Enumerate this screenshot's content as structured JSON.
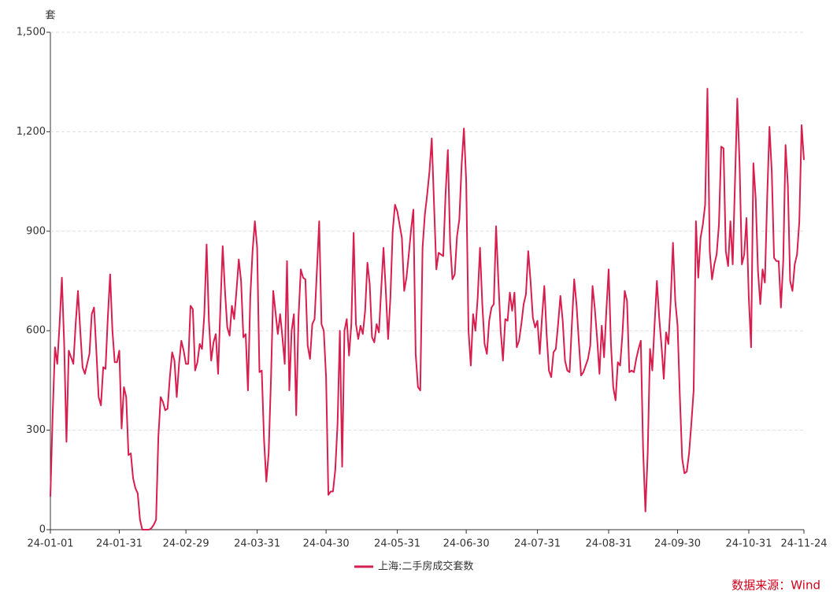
{
  "chart_data": {
    "type": "line",
    "y_unit": "套",
    "source": "数据来源：Wind",
    "x": [
      "24-01-01",
      "24-01-02",
      "24-01-03",
      "24-01-04",
      "24-01-05",
      "24-01-06",
      "24-01-07",
      "24-01-08",
      "24-01-09",
      "24-01-10",
      "24-01-11",
      "24-01-12",
      "24-01-13",
      "24-01-14",
      "24-01-15",
      "24-01-16",
      "24-01-17",
      "24-01-18",
      "24-01-19",
      "24-01-20",
      "24-01-21",
      "24-01-22",
      "24-01-23",
      "24-01-24",
      "24-01-25",
      "24-01-26",
      "24-01-27",
      "24-01-28",
      "24-01-29",
      "24-01-30",
      "24-01-31",
      "24-02-01",
      "24-02-02",
      "24-02-03",
      "24-02-04",
      "24-02-05",
      "24-02-06",
      "24-02-07",
      "24-02-08",
      "24-02-09",
      "24-02-10",
      "24-02-11",
      "24-02-12",
      "24-02-13",
      "24-02-14",
      "24-02-15",
      "24-02-16",
      "24-02-17",
      "24-02-18",
      "24-02-19",
      "24-02-20",
      "24-02-21",
      "24-02-22",
      "24-02-23",
      "24-02-24",
      "24-02-25",
      "24-02-26",
      "24-02-27",
      "24-02-28",
      "24-02-29",
      "24-03-01",
      "24-03-02",
      "24-03-03",
      "24-03-04",
      "24-03-05",
      "24-03-06",
      "24-03-07",
      "24-03-08",
      "24-03-09",
      "24-03-10",
      "24-03-11",
      "24-03-12",
      "24-03-13",
      "24-03-14",
      "24-03-15",
      "24-03-16",
      "24-03-17",
      "24-03-18",
      "24-03-19",
      "24-03-20",
      "24-03-21",
      "24-03-22",
      "24-03-23",
      "24-03-24",
      "24-03-25",
      "24-03-26",
      "24-03-27",
      "24-03-28",
      "24-03-29",
      "24-03-30",
      "24-03-31",
      "24-04-01",
      "24-04-02",
      "24-04-03",
      "24-04-04",
      "24-04-05",
      "24-04-06",
      "24-04-07",
      "24-04-08",
      "24-04-09",
      "24-04-10",
      "24-04-11",
      "24-04-12",
      "24-04-13",
      "24-04-14",
      "24-04-15",
      "24-04-16",
      "24-04-17",
      "24-04-18",
      "24-04-19",
      "24-04-20",
      "24-04-21",
      "24-04-22",
      "24-04-23",
      "24-04-24",
      "24-04-25",
      "24-04-26",
      "24-04-27",
      "24-04-28",
      "24-04-29",
      "24-04-30",
      "24-05-01",
      "24-05-02",
      "24-05-03",
      "24-05-04",
      "24-05-05",
      "24-05-06",
      "24-05-07",
      "24-05-08",
      "24-05-09",
      "24-05-10",
      "24-05-11",
      "24-05-12",
      "24-05-13",
      "24-05-14",
      "24-05-15",
      "24-05-16",
      "24-05-17",
      "24-05-18",
      "24-05-19",
      "24-05-20",
      "24-05-21",
      "24-05-22",
      "24-05-23",
      "24-05-24",
      "24-05-25",
      "24-05-26",
      "24-05-27",
      "24-05-28",
      "24-05-29",
      "24-05-30",
      "24-05-31",
      "24-06-01",
      "24-06-02",
      "24-06-03",
      "24-06-04",
      "24-06-05",
      "24-06-06",
      "24-06-07",
      "24-06-08",
      "24-06-09",
      "24-06-10",
      "24-06-11",
      "24-06-12",
      "24-06-13",
      "24-06-14",
      "24-06-15",
      "24-06-16",
      "24-06-17",
      "24-06-18",
      "24-06-19",
      "24-06-20",
      "24-06-21",
      "24-06-22",
      "24-06-23",
      "24-06-24",
      "24-06-25",
      "24-06-26",
      "24-06-27",
      "24-06-28",
      "24-06-29",
      "24-06-30",
      "24-07-01",
      "24-07-02",
      "24-07-03",
      "24-07-04",
      "24-07-05",
      "24-07-06",
      "24-07-07",
      "24-07-08",
      "24-07-09",
      "24-07-10",
      "24-07-11",
      "24-07-12",
      "24-07-13",
      "24-07-14",
      "24-07-15",
      "24-07-16",
      "24-07-17",
      "24-07-18",
      "24-07-19",
      "24-07-20",
      "24-07-21",
      "24-07-22",
      "24-07-23",
      "24-07-24",
      "24-07-25",
      "24-07-26",
      "24-07-27",
      "24-07-28",
      "24-07-29",
      "24-07-30",
      "24-07-31",
      "24-08-01",
      "24-08-02",
      "24-08-03",
      "24-08-04",
      "24-08-05",
      "24-08-06",
      "24-08-07",
      "24-08-08",
      "24-08-09",
      "24-08-10",
      "24-08-11",
      "24-08-12",
      "24-08-13",
      "24-08-14",
      "24-08-15",
      "24-08-16",
      "24-08-17",
      "24-08-18",
      "24-08-19",
      "24-08-20",
      "24-08-21",
      "24-08-22",
      "24-08-23",
      "24-08-24",
      "24-08-25",
      "24-08-26",
      "24-08-27",
      "24-08-28",
      "24-08-29",
      "24-08-30",
      "24-08-31",
      "24-09-01",
      "24-09-02",
      "24-09-03",
      "24-09-04",
      "24-09-05",
      "24-09-06",
      "24-09-07",
      "24-09-08",
      "24-09-09",
      "24-09-10",
      "24-09-11",
      "24-09-12",
      "24-09-13",
      "24-09-14",
      "24-09-15",
      "24-09-16",
      "24-09-17",
      "24-09-18",
      "24-09-19",
      "24-09-20",
      "24-09-21",
      "24-09-22",
      "24-09-23",
      "24-09-24",
      "24-09-25",
      "24-09-26",
      "24-09-27",
      "24-09-28",
      "24-09-29",
      "24-09-30",
      "24-10-01",
      "24-10-02",
      "24-10-03",
      "24-10-04",
      "24-10-05",
      "24-10-06",
      "24-10-07",
      "24-10-08",
      "24-10-09",
      "24-10-10",
      "24-10-11",
      "24-10-12",
      "24-10-13",
      "24-10-14",
      "24-10-15",
      "24-10-16",
      "24-10-17",
      "24-10-18",
      "24-10-19",
      "24-10-20",
      "24-10-21",
      "24-10-22",
      "24-10-23",
      "24-10-24",
      "24-10-25",
      "24-10-26",
      "24-10-27",
      "24-10-28",
      "24-10-29",
      "24-10-30",
      "24-10-31",
      "24-11-01",
      "24-11-02",
      "24-11-03",
      "24-11-04",
      "24-11-05",
      "24-11-06",
      "24-11-07",
      "24-11-08",
      "24-11-09",
      "24-11-10",
      "24-11-11",
      "24-11-12",
      "24-11-13",
      "24-11-14",
      "24-11-15",
      "24-11-16",
      "24-11-17",
      "24-11-18",
      "24-11-19",
      "24-11-20",
      "24-11-21",
      "24-11-22",
      "24-11-23",
      "24-11-24"
    ],
    "series": [
      {
        "name": "上海:二手房成交套数",
        "color": "#d81e4e",
        "values": [
          100,
          350,
          550,
          500,
          620,
          760,
          560,
          265,
          540,
          520,
          500,
          620,
          720,
          600,
          490,
          470,
          500,
          530,
          650,
          670,
          540,
          400,
          375,
          490,
          485,
          640,
          770,
          600,
          505,
          505,
          540,
          305,
          430,
          400,
          225,
          230,
          155,
          125,
          110,
          30,
          0,
          0,
          0,
          0,
          5,
          15,
          30,
          280,
          400,
          385,
          360,
          365,
          460,
          535,
          510,
          400,
          500,
          570,
          540,
          500,
          500,
          675,
          665,
          480,
          505,
          560,
          545,
          650,
          860,
          630,
          510,
          565,
          590,
          470,
          670,
          855,
          720,
          610,
          585,
          675,
          635,
          720,
          815,
          750,
          580,
          590,
          420,
          700,
          840,
          930,
          850,
          475,
          480,
          270,
          145,
          230,
          450,
          720,
          655,
          590,
          650,
          580,
          500,
          810,
          420,
          600,
          650,
          345,
          640,
          785,
          760,
          755,
          555,
          515,
          620,
          635,
          780,
          930,
          620,
          600,
          460,
          105,
          115,
          115,
          180,
          320,
          600,
          190,
          600,
          635,
          525,
          620,
          895,
          620,
          575,
          615,
          590,
          660,
          805,
          740,
          580,
          565,
          620,
          595,
          725,
          850,
          720,
          575,
          700,
          900,
          980,
          960,
          920,
          880,
          720,
          760,
          830,
          905,
          965,
          530,
          430,
          420,
          850,
          950,
          1010,
          1080,
          1180,
          980,
          785,
          835,
          830,
          825,
          1010,
          1145,
          865,
          755,
          770,
          885,
          935,
          1100,
          1210,
          1050,
          600,
          495,
          650,
          600,
          700,
          850,
          680,
          560,
          530,
          630,
          670,
          680,
          915,
          750,
          600,
          510,
          635,
          630,
          715,
          660,
          715,
          550,
          570,
          620,
          680,
          710,
          840,
          750,
          640,
          610,
          630,
          530,
          640,
          735,
          590,
          480,
          460,
          535,
          545,
          620,
          705,
          630,
          510,
          480,
          475,
          620,
          755,
          680,
          570,
          465,
          475,
          495,
          515,
          555,
          735,
          665,
          575,
          470,
          615,
          520,
          660,
          785,
          560,
          430,
          390,
          505,
          495,
          590,
          720,
          690,
          475,
          480,
          475,
          515,
          545,
          570,
          240,
          55,
          230,
          545,
          480,
          620,
          750,
          640,
          555,
          455,
          595,
          560,
          690,
          865,
          690,
          615,
          400,
          215,
          170,
          175,
          230,
          320,
          420,
          930,
          760,
          880,
          920,
          980,
          1330,
          840,
          755,
          800,
          830,
          920,
          1155,
          1150,
          840,
          795,
          930,
          800,
          1050,
          1300,
          1100,
          800,
          830,
          940,
          700,
          550,
          1105,
          1000,
          780,
          680,
          785,
          745,
          1000,
          1215,
          1080,
          820,
          810,
          810,
          670,
          810,
          1160,
          1040,
          750,
          720,
          800,
          830,
          930,
          1220,
          1115
        ]
      }
    ],
    "xticks": [
      "24-01-01",
      "24-01-31",
      "24-02-29",
      "24-03-31",
      "24-04-30",
      "24-05-31",
      "24-06-30",
      "24-07-31",
      "24-08-31",
      "24-09-30",
      "24-10-31",
      "24-11-24"
    ],
    "ylim": [
      0,
      1500
    ],
    "yticks": [
      0,
      300,
      600,
      900,
      {
        "value": 1200,
        "label": "1,200"
      },
      {
        "value": 1500,
        "label": "1,500"
      }
    ],
    "grid": true,
    "legend": "bottom"
  }
}
